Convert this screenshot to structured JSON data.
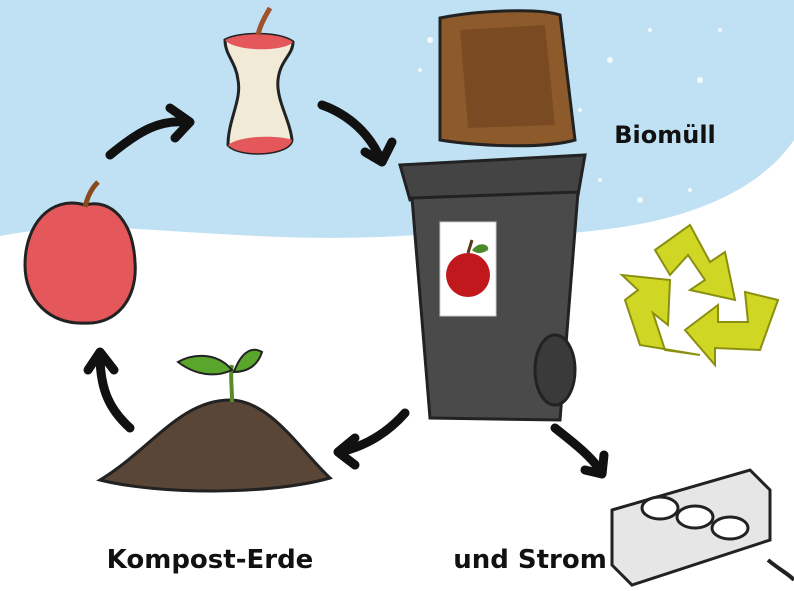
{
  "labels": {
    "bin": "Biomüll",
    "compost": "Kompost-Erde",
    "power": "und Strom"
  }
}
